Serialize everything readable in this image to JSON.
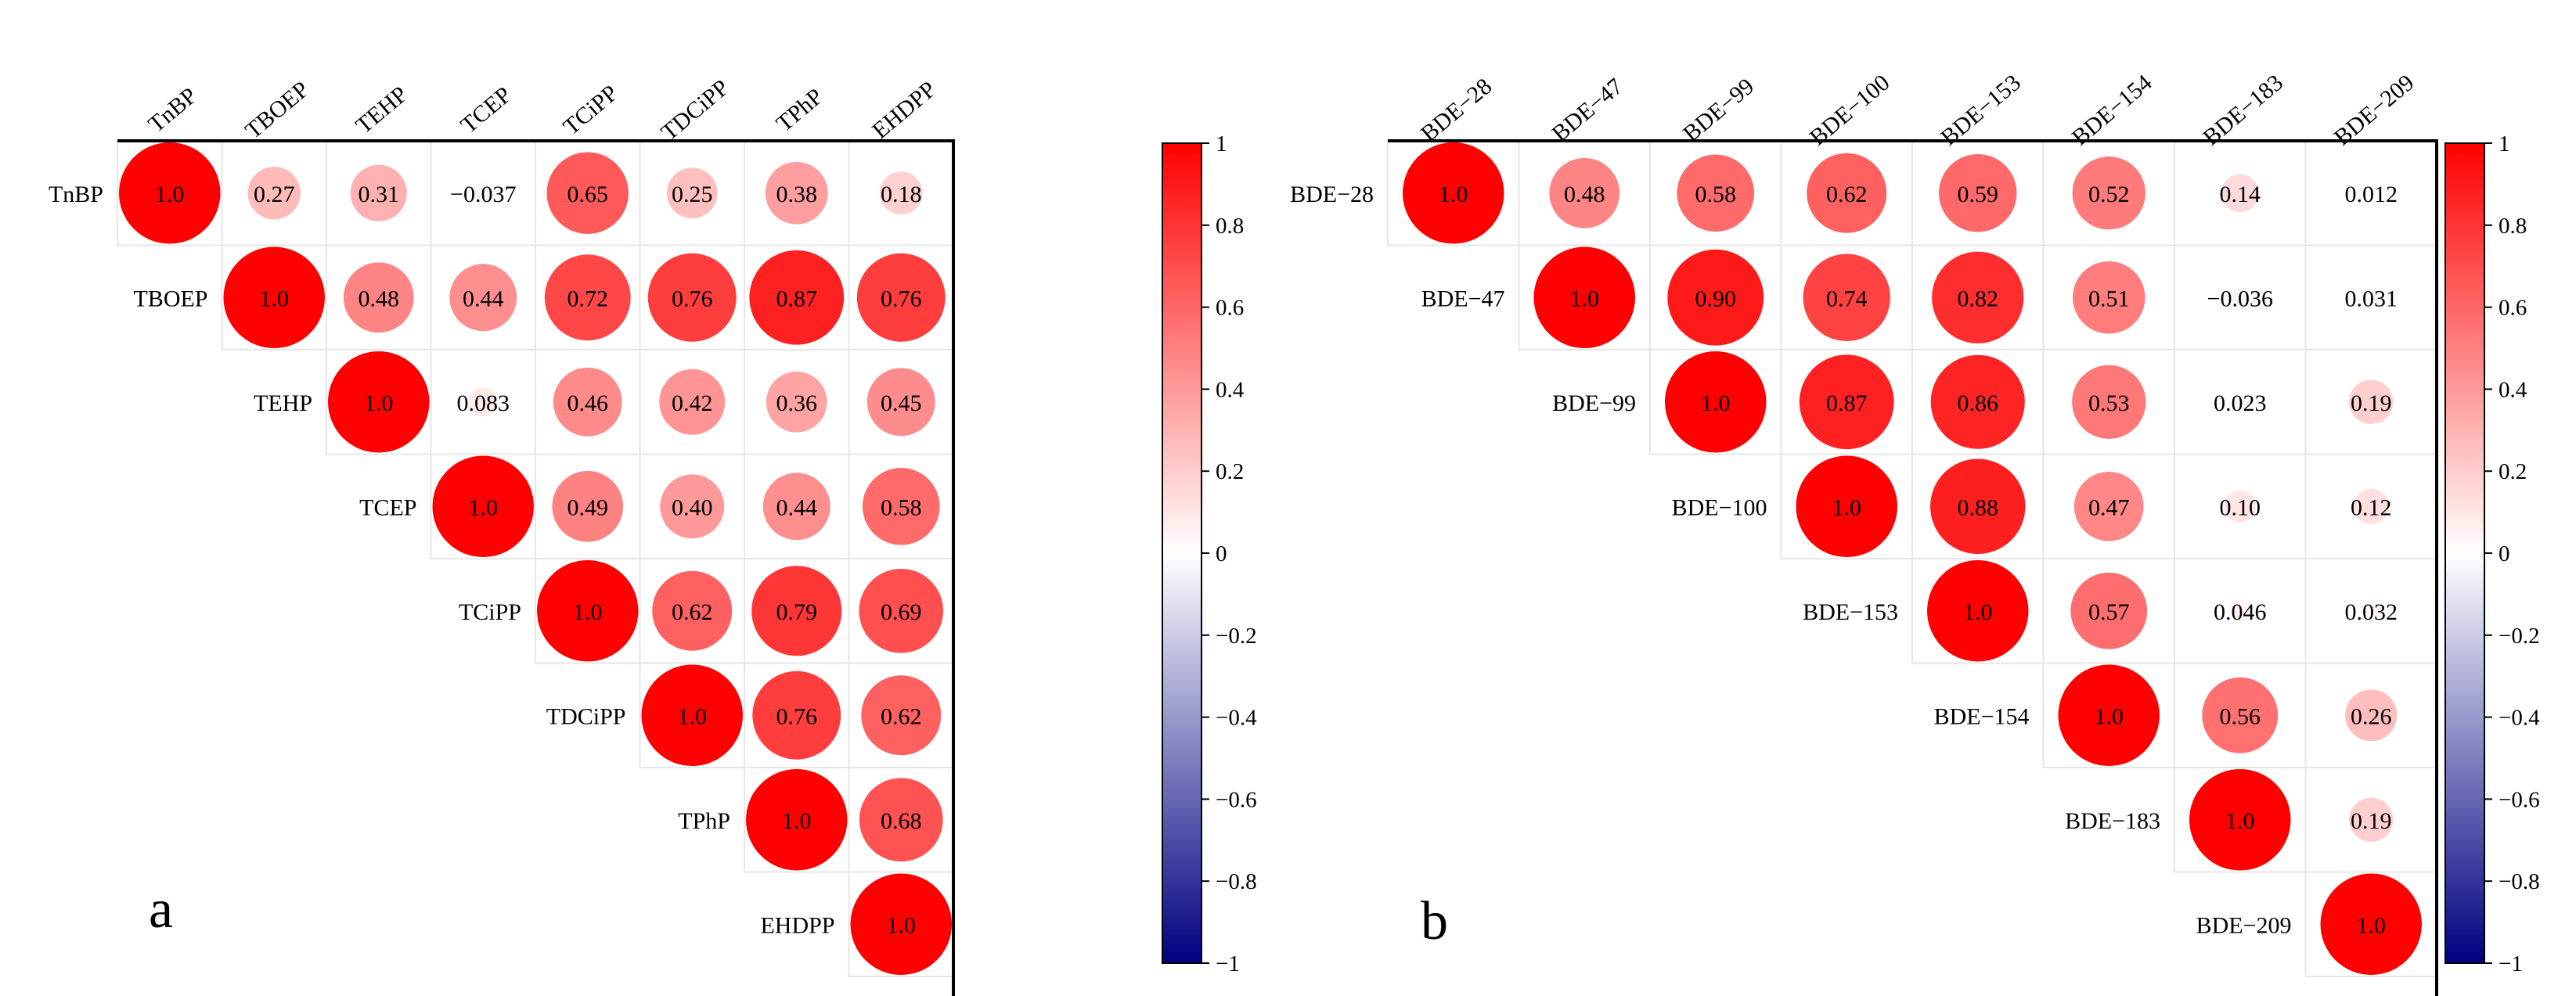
{
  "chart_data": [
    {
      "type": "heatmap",
      "subtype": "correlation-circles-upper-triangle",
      "panel_label": "a",
      "variables": [
        "TnBP",
        "TBOEP",
        "TEHP",
        "TCEP",
        "TCiPP",
        "TDCiPP",
        "TPhP",
        "EHDPP"
      ],
      "matrix": [
        [
          "1.0",
          "0.27",
          "0.31",
          "−0.037",
          "0.65",
          "0.25",
          "0.38",
          "0.18"
        ],
        [
          null,
          "1.0",
          "0.48",
          "0.44",
          "0.72",
          "0.76",
          "0.87",
          "0.76"
        ],
        [
          null,
          null,
          "1.0",
          "0.083",
          "0.46",
          "0.42",
          "0.36",
          "0.45"
        ],
        [
          null,
          null,
          null,
          "1.0",
          "0.49",
          "0.40",
          "0.44",
          "0.58"
        ],
        [
          null,
          null,
          null,
          null,
          "1.0",
          "0.62",
          "0.79",
          "0.69"
        ],
        [
          null,
          null,
          null,
          null,
          null,
          "1.0",
          "0.76",
          "0.62"
        ],
        [
          null,
          null,
          null,
          null,
          null,
          null,
          "1.0",
          "0.68"
        ],
        [
          null,
          null,
          null,
          null,
          null,
          null,
          null,
          "1.0"
        ]
      ],
      "colorbar": {
        "range": [
          -1,
          1
        ],
        "ticks": [
          "1",
          "0.8",
          "0.6",
          "0.4",
          "0.2",
          "0",
          "−0.2",
          "−0.4",
          "−0.6",
          "−0.8",
          "−1"
        ],
        "colors": {
          "neg": "#000080",
          "mid": "#ffffff",
          "pos": "#ff0000"
        }
      }
    },
    {
      "type": "heatmap",
      "subtype": "correlation-circles-upper-triangle",
      "panel_label": "b",
      "variables": [
        "BDE−28",
        "BDE−47",
        "BDE−99",
        "BDE−100",
        "BDE−153",
        "BDE−154",
        "BDE−183",
        "BDE−209"
      ],
      "matrix": [
        [
          "1.0",
          "0.48",
          "0.58",
          "0.62",
          "0.59",
          "0.52",
          "0.14",
          "0.012"
        ],
        [
          null,
          "1.0",
          "0.90",
          "0.74",
          "0.82",
          "0.51",
          "−0.036",
          "0.031"
        ],
        [
          null,
          null,
          "1.0",
          "0.87",
          "0.86",
          "0.53",
          "0.023",
          "0.19"
        ],
        [
          null,
          null,
          null,
          "1.0",
          "0.88",
          "0.47",
          "0.10",
          "0.12"
        ],
        [
          null,
          null,
          null,
          null,
          "1.0",
          "0.57",
          "0.046",
          "0.032"
        ],
        [
          null,
          null,
          null,
          null,
          null,
          "1.0",
          "0.56",
          "0.26"
        ],
        [
          null,
          null,
          null,
          null,
          null,
          null,
          "1.0",
          "0.19"
        ],
        [
          null,
          null,
          null,
          null,
          null,
          null,
          null,
          "1.0"
        ]
      ],
      "colorbar": {
        "range": [
          -1,
          1
        ],
        "ticks": [
          "1",
          "0.8",
          "0.6",
          "0.4",
          "0.2",
          "0",
          "−0.2",
          "−0.4",
          "−0.6",
          "−0.8",
          "−1"
        ],
        "colors": {
          "neg": "#000080",
          "mid": "#ffffff",
          "pos": "#ff0000"
        }
      }
    }
  ]
}
